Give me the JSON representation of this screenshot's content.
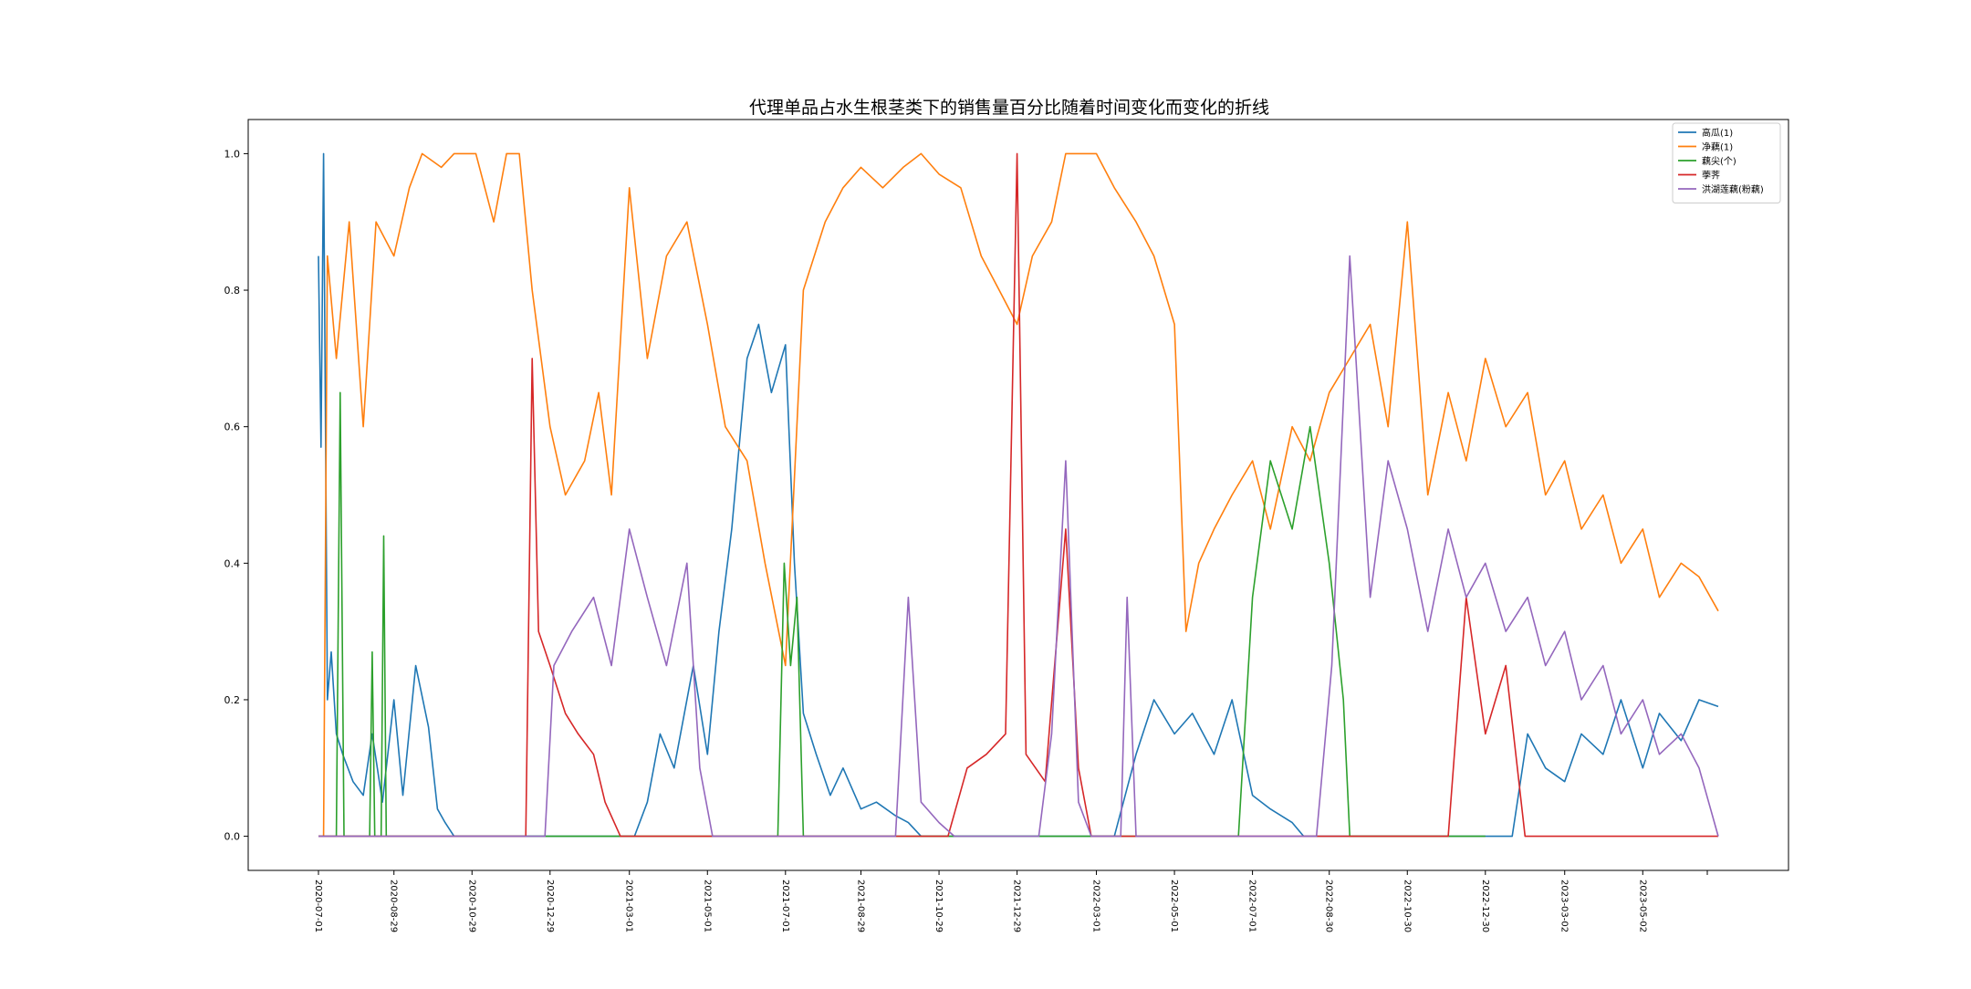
{
  "chart_data": {
    "type": "line",
    "title": "代理单品占水生根茎类下的销售量百分比随着时间变化而变化的折线",
    "xlabel": "",
    "ylabel": "",
    "ylim": [
      -0.05,
      1.05
    ],
    "yticks": [
      0.0,
      0.2,
      0.4,
      0.6,
      0.8,
      1.0
    ],
    "ytick_labels": [
      "0.0",
      "0.2",
      "0.4",
      "0.6",
      "0.8",
      "1.0"
    ],
    "xticks": [
      "2020-07-01",
      "2020-08-29",
      "2020-10-29",
      "2020-12-29",
      "2021-03-01",
      "2021-05-01",
      "2021-07-01",
      "2021-08-29",
      "2021-10-29",
      "2021-12-29",
      "2022-03-01",
      "2022-05-01",
      "2022-07-01",
      "2022-08-30",
      "2022-10-30",
      "2022-12-30",
      "2023-03-02",
      "2023-05-02"
    ],
    "grid": false,
    "legend_position": "top-right",
    "series": [
      {
        "name": "高瓜(1)",
        "color": "#1f77b4",
        "points": [
          [
            "2020-07-01",
            0.85
          ],
          [
            "2020-07-03",
            0.57
          ],
          [
            "2020-07-05",
            1.0
          ],
          [
            "2020-07-08",
            0.2
          ],
          [
            "2020-07-11",
            0.27
          ],
          [
            "2020-07-15",
            0.15
          ],
          [
            "2020-07-20",
            0.12
          ],
          [
            "2020-07-28",
            0.08
          ],
          [
            "2020-08-05",
            0.06
          ],
          [
            "2020-08-12",
            0.15
          ],
          [
            "2020-08-20",
            0.05
          ],
          [
            "2020-08-29",
            0.2
          ],
          [
            "2020-09-05",
            0.06
          ],
          [
            "2020-09-15",
            0.25
          ],
          [
            "2020-09-25",
            0.16
          ],
          [
            "2020-10-02",
            0.04
          ],
          [
            "2020-10-08",
            0.02
          ],
          [
            "2020-10-15",
            0.0
          ],
          [
            "2021-03-05",
            0.0
          ],
          [
            "2021-03-15",
            0.05
          ],
          [
            "2021-03-25",
            0.15
          ],
          [
            "2021-04-05",
            0.1
          ],
          [
            "2021-04-20",
            0.25
          ],
          [
            "2021-05-01",
            0.12
          ],
          [
            "2021-05-10",
            0.3
          ],
          [
            "2021-05-20",
            0.45
          ],
          [
            "2021-06-01",
            0.7
          ],
          [
            "2021-06-10",
            0.75
          ],
          [
            "2021-06-20",
            0.65
          ],
          [
            "2021-07-01",
            0.72
          ],
          [
            "2021-07-08",
            0.4
          ],
          [
            "2021-07-15",
            0.18
          ],
          [
            "2021-07-25",
            0.12
          ],
          [
            "2021-08-05",
            0.06
          ],
          [
            "2021-08-15",
            0.1
          ],
          [
            "2021-08-29",
            0.04
          ],
          [
            "2021-09-10",
            0.05
          ],
          [
            "2021-09-25",
            0.03
          ],
          [
            "2021-10-05",
            0.02
          ],
          [
            "2021-10-15",
            0.0
          ],
          [
            "2022-03-15",
            0.0
          ],
          [
            "2022-04-01",
            0.12
          ],
          [
            "2022-04-15",
            0.2
          ],
          [
            "2022-05-01",
            0.15
          ],
          [
            "2022-05-15",
            0.18
          ],
          [
            "2022-06-01",
            0.12
          ],
          [
            "2022-06-15",
            0.2
          ],
          [
            "2022-07-01",
            0.06
          ],
          [
            "2022-07-15",
            0.04
          ],
          [
            "2022-08-01",
            0.02
          ],
          [
            "2022-08-10",
            0.0
          ],
          [
            "2023-01-20",
            0.0
          ],
          [
            "2023-02-01",
            0.15
          ],
          [
            "2023-02-15",
            0.1
          ],
          [
            "2023-03-02",
            0.08
          ],
          [
            "2023-03-15",
            0.15
          ],
          [
            "2023-04-01",
            0.12
          ],
          [
            "2023-04-15",
            0.2
          ],
          [
            "2023-05-02",
            0.1
          ],
          [
            "2023-05-15",
            0.18
          ],
          [
            "2023-06-01",
            0.14
          ],
          [
            "2023-06-15",
            0.2
          ],
          [
            "2023-06-30",
            0.19
          ]
        ]
      },
      {
        "name": "净藕(1)",
        "color": "#ff7f0e",
        "points": [
          [
            "2020-07-01",
            0.0
          ],
          [
            "2020-07-05",
            0.0
          ],
          [
            "2020-07-08",
            0.85
          ],
          [
            "2020-07-15",
            0.7
          ],
          [
            "2020-07-25",
            0.9
          ],
          [
            "2020-08-05",
            0.6
          ],
          [
            "2020-08-15",
            0.9
          ],
          [
            "2020-08-29",
            0.85
          ],
          [
            "2020-09-10",
            0.95
          ],
          [
            "2020-09-20",
            1.0
          ],
          [
            "2020-10-05",
            0.98
          ],
          [
            "2020-10-15",
            1.0
          ],
          [
            "2020-11-01",
            1.0
          ],
          [
            "2020-11-15",
            0.9
          ],
          [
            "2020-11-25",
            1.0
          ],
          [
            "2020-12-05",
            1.0
          ],
          [
            "2020-12-15",
            0.8
          ],
          [
            "2020-12-29",
            0.6
          ],
          [
            "2021-01-10",
            0.5
          ],
          [
            "2021-01-25",
            0.55
          ],
          [
            "2021-02-05",
            0.65
          ],
          [
            "2021-02-15",
            0.5
          ],
          [
            "2021-03-01",
            0.95
          ],
          [
            "2021-03-15",
            0.7
          ],
          [
            "2021-03-30",
            0.85
          ],
          [
            "2021-04-15",
            0.9
          ],
          [
            "2021-05-01",
            0.75
          ],
          [
            "2021-05-15",
            0.6
          ],
          [
            "2021-06-01",
            0.55
          ],
          [
            "2021-06-15",
            0.4
          ],
          [
            "2021-07-01",
            0.25
          ],
          [
            "2021-07-15",
            0.8
          ],
          [
            "2021-08-01",
            0.9
          ],
          [
            "2021-08-15",
            0.95
          ],
          [
            "2021-08-29",
            0.98
          ],
          [
            "2021-09-15",
            0.95
          ],
          [
            "2021-10-01",
            0.98
          ],
          [
            "2021-10-15",
            1.0
          ],
          [
            "2021-10-29",
            0.97
          ],
          [
            "2021-11-15",
            0.95
          ],
          [
            "2021-12-01",
            0.85
          ],
          [
            "2021-12-15",
            0.8
          ],
          [
            "2021-12-29",
            0.75
          ],
          [
            "2022-01-10",
            0.85
          ],
          [
            "2022-01-25",
            0.9
          ],
          [
            "2022-02-05",
            1.0
          ],
          [
            "2022-02-20",
            1.0
          ],
          [
            "2022-03-01",
            1.0
          ],
          [
            "2022-03-15",
            0.95
          ],
          [
            "2022-04-01",
            0.9
          ],
          [
            "2022-04-15",
            0.85
          ],
          [
            "2022-05-01",
            0.75
          ],
          [
            "2022-05-10",
            0.3
          ],
          [
            "2022-05-20",
            0.4
          ],
          [
            "2022-06-01",
            0.45
          ],
          [
            "2022-06-15",
            0.5
          ],
          [
            "2022-07-01",
            0.55
          ],
          [
            "2022-07-15",
            0.45
          ],
          [
            "2022-08-01",
            0.6
          ],
          [
            "2022-08-15",
            0.55
          ],
          [
            "2022-08-30",
            0.65
          ],
          [
            "2022-09-15",
            0.7
          ],
          [
            "2022-10-01",
            0.75
          ],
          [
            "2022-10-15",
            0.6
          ],
          [
            "2022-10-30",
            0.9
          ],
          [
            "2022-11-15",
            0.5
          ],
          [
            "2022-12-01",
            0.65
          ],
          [
            "2022-12-15",
            0.55
          ],
          [
            "2022-12-30",
            0.7
          ],
          [
            "2023-01-15",
            0.6
          ],
          [
            "2023-02-01",
            0.65
          ],
          [
            "2023-02-15",
            0.5
          ],
          [
            "2023-03-02",
            0.55
          ],
          [
            "2023-03-15",
            0.45
          ],
          [
            "2023-04-01",
            0.5
          ],
          [
            "2023-04-15",
            0.4
          ],
          [
            "2023-05-02",
            0.45
          ],
          [
            "2023-05-15",
            0.35
          ],
          [
            "2023-06-01",
            0.4
          ],
          [
            "2023-06-15",
            0.38
          ],
          [
            "2023-06-30",
            0.33
          ]
        ]
      },
      {
        "name": "藕尖(个)",
        "color": "#2ca02c",
        "points": [
          [
            "2020-07-01",
            0.0
          ],
          [
            "2020-07-15",
            0.0
          ],
          [
            "2020-07-18",
            0.65
          ],
          [
            "2020-07-21",
            0.0
          ],
          [
            "2020-08-10",
            0.0
          ],
          [
            "2020-08-12",
            0.27
          ],
          [
            "2020-08-14",
            0.0
          ],
          [
            "2020-08-19",
            0.0
          ],
          [
            "2020-08-21",
            0.44
          ],
          [
            "2020-08-23",
            0.0
          ],
          [
            "2021-02-20",
            0.0
          ],
          [
            "2021-06-25",
            0.0
          ],
          [
            "2021-06-30",
            0.4
          ],
          [
            "2021-07-05",
            0.25
          ],
          [
            "2021-07-10",
            0.35
          ],
          [
            "2021-07-15",
            0.0
          ],
          [
            "2022-06-20",
            0.0
          ],
          [
            "2022-07-01",
            0.35
          ],
          [
            "2022-07-15",
            0.55
          ],
          [
            "2022-08-01",
            0.45
          ],
          [
            "2022-08-15",
            0.6
          ],
          [
            "2022-08-30",
            0.4
          ],
          [
            "2022-09-10",
            0.2
          ],
          [
            "2022-09-15",
            0.0
          ],
          [
            "2022-12-30",
            0.0
          ]
        ]
      },
      {
        "name": "荸荠",
        "color": "#d62728",
        "points": [
          [
            "2020-07-01",
            0.0
          ],
          [
            "2020-12-10",
            0.0
          ],
          [
            "2020-12-15",
            0.7
          ],
          [
            "2020-12-20",
            0.3
          ],
          [
            "2020-12-29",
            0.25
          ],
          [
            "2021-01-10",
            0.18
          ],
          [
            "2021-01-20",
            0.15
          ],
          [
            "2021-02-01",
            0.12
          ],
          [
            "2021-02-10",
            0.05
          ],
          [
            "2021-02-22",
            0.0
          ],
          [
            "2021-11-05",
            0.0
          ],
          [
            "2021-11-20",
            0.1
          ],
          [
            "2021-12-05",
            0.12
          ],
          [
            "2021-12-20",
            0.15
          ],
          [
            "2021-12-29",
            1.0
          ],
          [
            "2022-01-05",
            0.12
          ],
          [
            "2022-01-20",
            0.08
          ],
          [
            "2022-02-05",
            0.45
          ],
          [
            "2022-02-15",
            0.1
          ],
          [
            "2022-02-25",
            0.0
          ],
          [
            "2022-12-01",
            0.0
          ],
          [
            "2022-12-15",
            0.35
          ],
          [
            "2022-12-30",
            0.15
          ],
          [
            "2023-01-15",
            0.25
          ],
          [
            "2023-01-30",
            0.0
          ],
          [
            "2023-06-30",
            0.0
          ]
        ]
      },
      {
        "name": "洪湖莲藕(粉藕)",
        "color": "#9467bd",
        "points": [
          [
            "2020-07-01",
            0.0
          ],
          [
            "2020-12-25",
            0.0
          ],
          [
            "2021-01-01",
            0.25
          ],
          [
            "2021-01-15",
            0.3
          ],
          [
            "2021-02-01",
            0.35
          ],
          [
            "2021-02-15",
            0.25
          ],
          [
            "2021-03-01",
            0.45
          ],
          [
            "2021-03-15",
            0.35
          ],
          [
            "2021-03-30",
            0.25
          ],
          [
            "2021-04-15",
            0.4
          ],
          [
            "2021-04-25",
            0.1
          ],
          [
            "2021-05-05",
            0.0
          ],
          [
            "2021-09-25",
            0.0
          ],
          [
            "2021-10-05",
            0.35
          ],
          [
            "2021-10-15",
            0.05
          ],
          [
            "2021-10-29",
            0.02
          ],
          [
            "2021-11-10",
            0.0
          ],
          [
            "2022-01-15",
            0.0
          ],
          [
            "2022-01-25",
            0.15
          ],
          [
            "2022-02-05",
            0.55
          ],
          [
            "2022-02-15",
            0.05
          ],
          [
            "2022-02-25",
            0.0
          ],
          [
            "2022-03-20",
            0.0
          ],
          [
            "2022-03-25",
            0.35
          ],
          [
            "2022-04-01",
            0.0
          ],
          [
            "2022-08-20",
            0.0
          ],
          [
            "2022-09-01",
            0.25
          ],
          [
            "2022-09-15",
            0.85
          ],
          [
            "2022-10-01",
            0.35
          ],
          [
            "2022-10-15",
            0.55
          ],
          [
            "2022-10-30",
            0.45
          ],
          [
            "2022-11-15",
            0.3
          ],
          [
            "2022-12-01",
            0.45
          ],
          [
            "2022-12-15",
            0.35
          ],
          [
            "2022-12-30",
            0.4
          ],
          [
            "2023-01-15",
            0.3
          ],
          [
            "2023-02-01",
            0.35
          ],
          [
            "2023-02-15",
            0.25
          ],
          [
            "2023-03-02",
            0.3
          ],
          [
            "2023-03-15",
            0.2
          ],
          [
            "2023-04-01",
            0.25
          ],
          [
            "2023-04-15",
            0.15
          ],
          [
            "2023-05-02",
            0.2
          ],
          [
            "2023-05-15",
            0.12
          ],
          [
            "2023-06-01",
            0.15
          ],
          [
            "2023-06-15",
            0.1
          ],
          [
            "2023-06-30",
            0.0
          ]
        ]
      }
    ]
  }
}
